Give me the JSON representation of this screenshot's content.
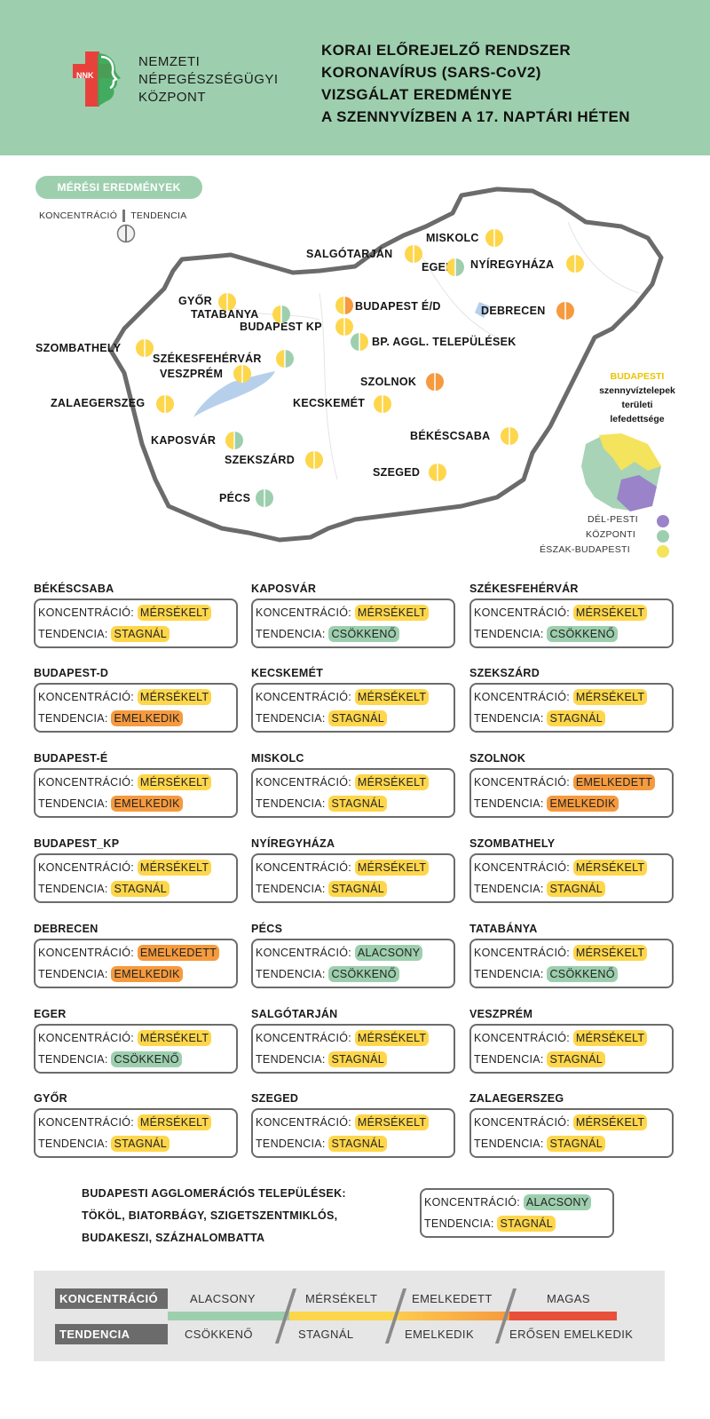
{
  "header": {
    "org_lines": [
      "NEMZETI",
      "NÉPEGÉSZSÉGÜGYI",
      "KÖZPONT"
    ],
    "logo_text": "NNK",
    "title_lines": [
      "KORAI ELŐREJELZŐ RENDSZER",
      "KORONAVÍRUS (SARS-CoV2)",
      "VIZSGÁLAT EREDMÉNYE",
      "A SZENNYVÍZBEN A 17. NAPTÁRI HÉTEN"
    ]
  },
  "colors": {
    "low": "#9dcfae",
    "moderate": "#fdd64b",
    "elevated": "#f59a3e",
    "high": "#e8503a",
    "dark_gray": "#6b6b6b"
  },
  "map": {
    "measurement_label": "MÉRÉSI EREDMÉNYEK",
    "legend_conc": "KONCENTRÁCIÓ",
    "legend_trend": "TENDENCIA",
    "cities": [
      {
        "name": "MISKOLC",
        "conc": "mod",
        "trend": "mod"
      },
      {
        "name": "SALGÓTARJÁN",
        "conc": "mod",
        "trend": "mod"
      },
      {
        "name": "EGER",
        "conc": "mod",
        "trend": "low"
      },
      {
        "name": "NYÍREGYHÁZA",
        "conc": "mod",
        "trend": "mod"
      },
      {
        "name": "GYŐR",
        "conc": "mod",
        "trend": "mod"
      },
      {
        "name": "TATABÁNYA",
        "conc": "mod",
        "trend": "low"
      },
      {
        "name": "BUDAPEST É/D",
        "conc": "mod",
        "trend": "high"
      },
      {
        "name": "BUDAPEST KP",
        "conc": "mod",
        "trend": "mod"
      },
      {
        "name": "DEBRECEN",
        "conc": "high",
        "trend": "high"
      },
      {
        "name": "BP. AGGL. TELEPÜLÉSEK",
        "conc": "low",
        "trend": "mod"
      },
      {
        "name": "SZOMBATHELY",
        "conc": "mod",
        "trend": "mod"
      },
      {
        "name": "SZÉKESFEHÉRVÁR",
        "conc": "mod",
        "trend": "low"
      },
      {
        "name": "VESZPRÉM",
        "conc": "mod",
        "trend": "mod"
      },
      {
        "name": "SZOLNOK",
        "conc": "high",
        "trend": "high"
      },
      {
        "name": "ZALAEGERSZEG",
        "conc": "mod",
        "trend": "mod"
      },
      {
        "name": "KECSKEMÉT",
        "conc": "mod",
        "trend": "mod"
      },
      {
        "name": "BÉKÉSCSABA",
        "conc": "mod",
        "trend": "mod"
      },
      {
        "name": "KAPOSVÁR",
        "conc": "mod",
        "trend": "low"
      },
      {
        "name": "SZEKSZÁRD",
        "conc": "mod",
        "trend": "mod"
      },
      {
        "name": "SZEGED",
        "conc": "mod",
        "trend": "mod"
      },
      {
        "name": "PÉCS",
        "conc": "low",
        "trend": "low"
      }
    ],
    "bp_title": [
      "BUDAPESTI",
      "szennyvíztelepek",
      "területi",
      "lefedettsége"
    ],
    "bp_legend": [
      "DÉL-PESTI",
      "KÖZPONTI",
      "ÉSZAK-BUDAPESTI"
    ]
  },
  "cards": [
    {
      "name": "BÉKÉSCSABA",
      "conc": "MÉRSÉKELT",
      "conc_level": "mod",
      "trend": "STAGNÁL",
      "trend_level": "mod"
    },
    {
      "name": "KAPOSVÁR",
      "conc": "MÉRSÉKELT",
      "conc_level": "mod",
      "trend": "CSÖKKENŐ",
      "trend_level": "low"
    },
    {
      "name": "SZÉKESFEHÉRVÁR",
      "conc": "MÉRSÉKELT",
      "conc_level": "mod",
      "trend": "CSÖKKENŐ",
      "trend_level": "low"
    },
    {
      "name": "BUDAPEST-D",
      "conc": "MÉRSÉKELT",
      "conc_level": "mod",
      "trend": "EMELKEDIK",
      "trend_level": "high"
    },
    {
      "name": "KECSKEMÉT",
      "conc": "MÉRSÉKELT",
      "conc_level": "mod",
      "trend": "STAGNÁL",
      "trend_level": "mod"
    },
    {
      "name": "SZEKSZÁRD",
      "conc": "MÉRSÉKELT",
      "conc_level": "mod",
      "trend": "STAGNÁL",
      "trend_level": "mod"
    },
    {
      "name": "BUDAPEST-É",
      "conc": "MÉRSÉKELT",
      "conc_level": "mod",
      "trend": "EMELKEDIK",
      "trend_level": "high"
    },
    {
      "name": "MISKOLC",
      "conc": "MÉRSÉKELT",
      "conc_level": "mod",
      "trend": "STAGNÁL",
      "trend_level": "mod"
    },
    {
      "name": "SZOLNOK",
      "conc": "EMELKEDETT",
      "conc_level": "high",
      "trend": "EMELKEDIK",
      "trend_level": "high"
    },
    {
      "name": "BUDAPEST_KP",
      "conc": "MÉRSÉKELT",
      "conc_level": "mod",
      "trend": "STAGNÁL",
      "trend_level": "mod"
    },
    {
      "name": "NYÍREGYHÁZA",
      "conc": "MÉRSÉKELT",
      "conc_level": "mod",
      "trend": "STAGNÁL",
      "trend_level": "mod"
    },
    {
      "name": "SZOMBATHELY",
      "conc": "MÉRSÉKELT",
      "conc_level": "mod",
      "trend": "STAGNÁL",
      "trend_level": "mod"
    },
    {
      "name": "DEBRECEN",
      "conc": "EMELKEDETT",
      "conc_level": "high",
      "trend": "EMELKEDIK",
      "trend_level": "high"
    },
    {
      "name": "PÉCS",
      "conc": "ALACSONY",
      "conc_level": "low",
      "trend": "CSÖKKENŐ",
      "trend_level": "low"
    },
    {
      "name": "TATABÁNYA",
      "conc": "MÉRSÉKELT",
      "conc_level": "mod",
      "trend": "CSÖKKENŐ",
      "trend_level": "low"
    },
    {
      "name": "EGER",
      "conc": "MÉRSÉKELT",
      "conc_level": "mod",
      "trend": "CSÖKKENŐ",
      "trend_level": "low"
    },
    {
      "name": "SALGÓTARJÁN",
      "conc": "MÉRSÉKELT",
      "conc_level": "mod",
      "trend": "STAGNÁL",
      "trend_level": "mod"
    },
    {
      "name": "VESZPRÉM",
      "conc": "MÉRSÉKELT",
      "conc_level": "mod",
      "trend": "STAGNÁL",
      "trend_level": "mod"
    },
    {
      "name": "GYŐR",
      "conc": "MÉRSÉKELT",
      "conc_level": "mod",
      "trend": "STAGNÁL",
      "trend_level": "mod"
    },
    {
      "name": "SZEGED",
      "conc": "MÉRSÉKELT",
      "conc_level": "mod",
      "trend": "STAGNÁL",
      "trend_level": "mod"
    },
    {
      "name": "ZALAEGERSZEG",
      "conc": "MÉRSÉKELT",
      "conc_level": "mod",
      "trend": "STAGNÁL",
      "trend_level": "mod"
    }
  ],
  "card_labels": {
    "conc": "KONCENTRÁCIÓ:",
    "trend": "TENDENCIA:"
  },
  "agglomeration": {
    "title_lines": [
      "BUDAPESTI AGGLOMERÁCIÓS TELEPÜLÉSEK:",
      "TÖKÖL, BIATORBÁGY, SZIGETSZENTMIKLÓS,",
      "BUDAKESZI, SZÁZHALOMBATTA"
    ],
    "conc": "ALACSONY",
    "conc_level": "low",
    "trend": "STAGNÁL",
    "trend_level": "mod"
  },
  "legend": {
    "conc_head": "KONCENTRÁCIÓ",
    "trend_head": "TENDENCIA",
    "conc_levels": [
      "ALACSONY",
      "MÉRSÉKELT",
      "EMELKEDETT",
      "MAGAS"
    ],
    "trend_levels": [
      "CSÖKKENŐ",
      "STAGNÁL",
      "EMELKEDIK",
      "ERŐSEN EMELKEDIK"
    ]
  }
}
